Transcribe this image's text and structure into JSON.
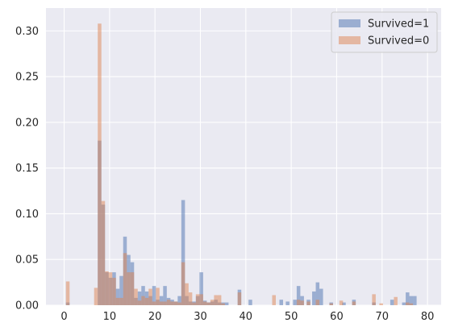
{
  "chart_data": {
    "type": "bar",
    "subtype": "overlapping-histogram",
    "title": "",
    "xlabel": "",
    "ylabel": "",
    "xlim": [
      -4,
      83
    ],
    "ylim": [
      0,
      0.325
    ],
    "xticks": [
      "0",
      "10",
      "20",
      "30",
      "40",
      "50",
      "60",
      "70",
      "80"
    ],
    "yticks": [
      "0.00",
      "0.05",
      "0.10",
      "0.15",
      "0.20",
      "0.25",
      "0.30"
    ],
    "grid": true,
    "legend_position": "top-right",
    "background": "#eaeaf2",
    "series": [
      {
        "name": "Survived=1",
        "color": "#4c72b0",
        "alpha": 0.5,
        "points": [
          [
            0.4,
            0.003
          ],
          [
            7.4,
            0.18
          ],
          [
            8.2,
            0.11
          ],
          [
            9.0,
            0.036
          ],
          [
            9.8,
            0.03
          ],
          [
            10.6,
            0.036
          ],
          [
            11.4,
            0.018
          ],
          [
            12.2,
            0.032
          ],
          [
            13.0,
            0.075
          ],
          [
            13.8,
            0.055
          ],
          [
            14.6,
            0.047
          ],
          [
            15.4,
            0.008
          ],
          [
            16.2,
            0.015
          ],
          [
            17.0,
            0.021
          ],
          [
            17.8,
            0.015
          ],
          [
            18.6,
            0.01
          ],
          [
            19.4,
            0.021
          ],
          [
            20.2,
            0.006
          ],
          [
            21.0,
            0.01
          ],
          [
            21.8,
            0.021
          ],
          [
            22.6,
            0.008
          ],
          [
            23.4,
            0.006
          ],
          [
            24.2,
            0.004
          ],
          [
            25.0,
            0.01
          ],
          [
            25.8,
            0.115
          ],
          [
            26.6,
            0.01
          ],
          [
            27.4,
            0.004
          ],
          [
            28.2,
            0.004
          ],
          [
            29.0,
            0.01
          ],
          [
            29.8,
            0.036
          ],
          [
            30.6,
            0.005
          ],
          [
            31.4,
            0.003
          ],
          [
            32.2,
            0.004
          ],
          [
            33.0,
            0.006
          ],
          [
            33.8,
            0.003
          ],
          [
            34.6,
            0.003
          ],
          [
            35.4,
            0.003
          ],
          [
            38.2,
            0.017
          ],
          [
            40.6,
            0.006
          ],
          [
            47.4,
            0.006
          ],
          [
            48.8,
            0.004
          ],
          [
            50.4,
            0.006
          ],
          [
            51.2,
            0.021
          ],
          [
            52.0,
            0.01
          ],
          [
            53.4,
            0.006
          ],
          [
            54.6,
            0.015
          ],
          [
            55.4,
            0.025
          ],
          [
            56.2,
            0.018
          ],
          [
            58.4,
            0.003
          ],
          [
            61.2,
            0.003
          ],
          [
            63.4,
            0.006
          ],
          [
            67.8,
            0.003
          ],
          [
            71.8,
            0.006
          ],
          [
            74.4,
            0.003
          ],
          [
            75.2,
            0.014
          ],
          [
            76.0,
            0.01
          ],
          [
            76.8,
            0.01
          ]
        ]
      },
      {
        "name": "Survived=0",
        "color": "#dd8452",
        "alpha": 0.5,
        "points": [
          [
            0.4,
            0.026
          ],
          [
            6.6,
            0.019
          ],
          [
            7.4,
            0.308
          ],
          [
            8.2,
            0.114
          ],
          [
            9.0,
            0.037
          ],
          [
            9.8,
            0.036
          ],
          [
            10.6,
            0.03
          ],
          [
            11.4,
            0.008
          ],
          [
            12.2,
            0.008
          ],
          [
            13.0,
            0.057
          ],
          [
            13.8,
            0.036
          ],
          [
            14.6,
            0.036
          ],
          [
            15.4,
            0.018
          ],
          [
            16.2,
            0.005
          ],
          [
            17.0,
            0.01
          ],
          [
            17.8,
            0.008
          ],
          [
            18.6,
            0.018
          ],
          [
            19.4,
            0.004
          ],
          [
            20.2,
            0.019
          ],
          [
            21.0,
            0.004
          ],
          [
            21.8,
            0.004
          ],
          [
            22.6,
            0.006
          ],
          [
            23.4,
            0.004
          ],
          [
            24.2,
            0.004
          ],
          [
            25.0,
            0.003
          ],
          [
            25.8,
            0.047
          ],
          [
            26.6,
            0.024
          ],
          [
            27.4,
            0.014
          ],
          [
            28.2,
            0.003
          ],
          [
            29.0,
            0.012
          ],
          [
            29.8,
            0.012
          ],
          [
            30.6,
            0.004
          ],
          [
            31.4,
            0.003
          ],
          [
            32.2,
            0.006
          ],
          [
            33.0,
            0.011
          ],
          [
            33.8,
            0.011
          ],
          [
            34.6,
            0.002
          ],
          [
            38.2,
            0.014
          ],
          [
            45.8,
            0.011
          ],
          [
            51.2,
            0.006
          ],
          [
            52.0,
            0.005
          ],
          [
            53.4,
            0.004
          ],
          [
            55.4,
            0.006
          ],
          [
            58.4,
            0.002
          ],
          [
            60.6,
            0.005
          ],
          [
            63.4,
            0.004
          ],
          [
            67.8,
            0.012
          ],
          [
            69.4,
            0.002
          ],
          [
            72.6,
            0.009
          ],
          [
            75.2,
            0.003
          ],
          [
            76.0,
            0.002
          ]
        ]
      }
    ]
  }
}
